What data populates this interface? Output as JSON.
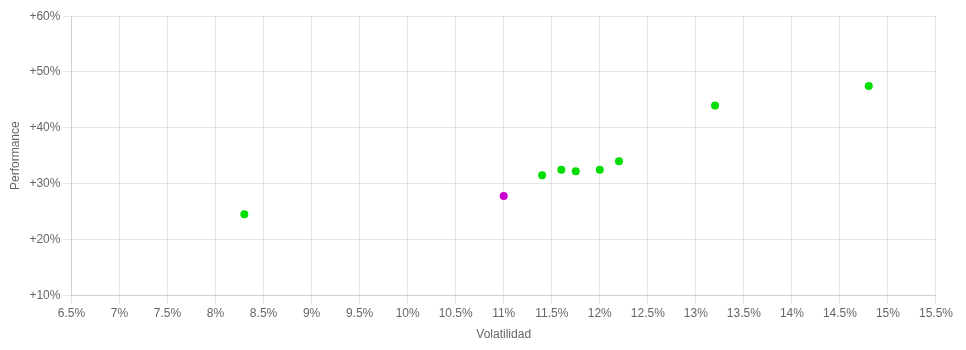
{
  "chart_data": {
    "type": "scatter",
    "xlabel": "Volatilidad",
    "ylabel": "Performance",
    "xlim": [
      0.065,
      0.155
    ],
    "ylim": [
      0.1,
      0.6
    ],
    "xticks": [
      {
        "value": 0.065,
        "label": "6.5%"
      },
      {
        "value": 0.07,
        "label": "7%"
      },
      {
        "value": 0.075,
        "label": "7.5%"
      },
      {
        "value": 0.08,
        "label": "8%"
      },
      {
        "value": 0.085,
        "label": "8.5%"
      },
      {
        "value": 0.09,
        "label": "9%"
      },
      {
        "value": 0.095,
        "label": "9.5%"
      },
      {
        "value": 0.1,
        "label": "10%"
      },
      {
        "value": 0.105,
        "label": "10.5%"
      },
      {
        "value": 0.11,
        "label": "11%"
      },
      {
        "value": 0.115,
        "label": "11.5%"
      },
      {
        "value": 0.12,
        "label": "12%"
      },
      {
        "value": 0.125,
        "label": "12.5%"
      },
      {
        "value": 0.13,
        "label": "13%"
      },
      {
        "value": 0.135,
        "label": "13.5%"
      },
      {
        "value": 0.14,
        "label": "14%"
      },
      {
        "value": 0.145,
        "label": "14.5%"
      },
      {
        "value": 0.15,
        "label": "15%"
      },
      {
        "value": 0.155,
        "label": "15.5%"
      }
    ],
    "yticks": [
      {
        "value": 0.1,
        "label": "+10%"
      },
      {
        "value": 0.2,
        "label": "+20%"
      },
      {
        "value": 0.3,
        "label": "+30%"
      },
      {
        "value": 0.4,
        "label": "+40%"
      },
      {
        "value": 0.5,
        "label": "+50%"
      },
      {
        "value": 0.6,
        "label": "+60%"
      }
    ],
    "grid": true,
    "series": [
      {
        "color": "#00dd00",
        "values": [
          [
            0.083,
            0.245
          ],
          [
            0.114,
            0.315
          ],
          [
            0.116,
            0.325
          ],
          [
            0.1175,
            0.322
          ],
          [
            0.12,
            0.325
          ],
          [
            0.122,
            0.34
          ],
          [
            0.132,
            0.44
          ],
          [
            0.148,
            0.475
          ]
        ]
      },
      {
        "color": "#cc00cc",
        "values": [
          [
            0.11,
            0.278
          ]
        ]
      }
    ]
  }
}
